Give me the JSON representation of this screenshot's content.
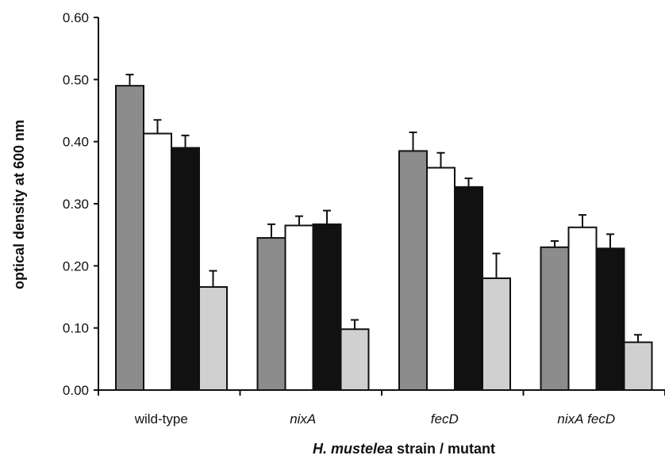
{
  "chart_data": {
    "type": "bar",
    "xlabel_parts": [
      {
        "text": "H. mustelea",
        "italic": true
      },
      {
        "text": " strain / mutant",
        "italic": false
      }
    ],
    "ylabel": "optical density at 600 nm",
    "categories": [
      [
        {
          "text": "wild-type",
          "italic": false
        }
      ],
      [
        {
          "text": "nixA",
          "italic": true
        }
      ],
      [
        {
          "text": "fecD",
          "italic": true
        }
      ],
      [
        {
          "text": "nixA",
          "italic": true
        },
        {
          "text": "  ",
          "italic": false
        },
        {
          "text": "fecD",
          "italic": true
        }
      ]
    ],
    "ylim": [
      0,
      0.6
    ],
    "yticks": [
      "0.00",
      "0.10",
      "0.20",
      "0.30",
      "0.40",
      "0.50",
      "0.60"
    ],
    "series": [
      {
        "fill": "#8c8c8c",
        "values": [
          0.49,
          0.245,
          0.385,
          0.23
        ],
        "errors": [
          0.018,
          0.022,
          0.03,
          0.01
        ]
      },
      {
        "fill": "#ffffff",
        "values": [
          0.413,
          0.265,
          0.358,
          0.262
        ],
        "errors": [
          0.022,
          0.015,
          0.024,
          0.02
        ]
      },
      {
        "fill": "#111111",
        "values": [
          0.39,
          0.267,
          0.327,
          0.228
        ],
        "errors": [
          0.02,
          0.022,
          0.014,
          0.023
        ]
      },
      {
        "fill": "#d0d0d0",
        "values": [
          0.166,
          0.098,
          0.18,
          0.077
        ],
        "errors": [
          0.026,
          0.015,
          0.04,
          0.012
        ]
      }
    ]
  }
}
